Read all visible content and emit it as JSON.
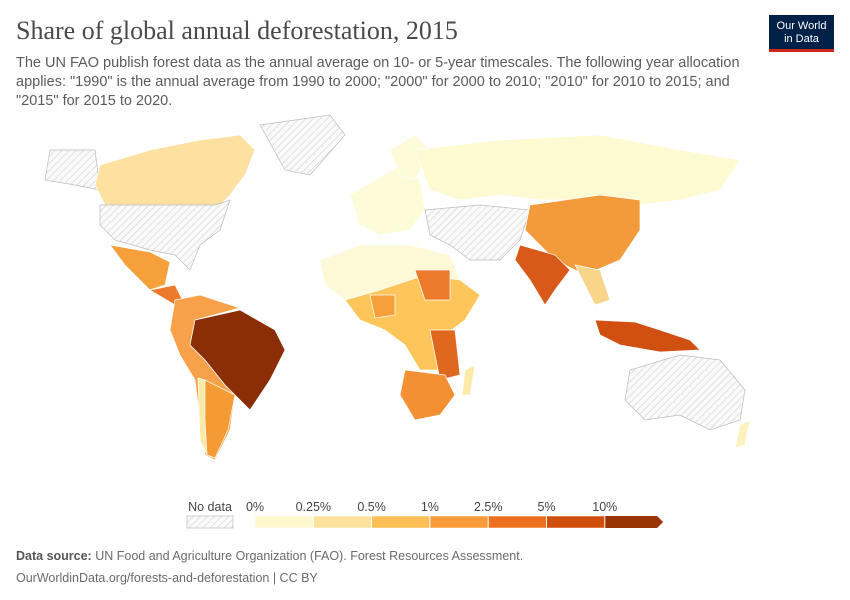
{
  "header": {
    "title": "Share of global annual deforestation, 2015",
    "subtitle": "The UN FAO publish forest data as the annual average on 10- or 5-year timescales. The following year allocation applies: \"1990\" is the annual average from 1990 to 2000; \"2000\" for 2000 to 2010; \"2010\" for 2010 to 2015; and \"2015\" for 2015 to 2020.",
    "logo": [
      "Our World",
      "in Data"
    ]
  },
  "legend": {
    "no_data": "No data",
    "ticks": [
      {
        "value": 0,
        "label": "0%"
      },
      {
        "value": 0.25,
        "label": "0.25%"
      },
      {
        "value": 0.5,
        "label": "0.5%"
      },
      {
        "value": 1,
        "label": "1%"
      },
      {
        "value": 2.5,
        "label": "2.5%"
      },
      {
        "value": 5,
        "label": "5%"
      },
      {
        "value": 10,
        "label": "10%"
      }
    ],
    "colors": [
      "#fef8cf",
      "#fde39c",
      "#fdbf55",
      "#f89a38",
      "#ec7020",
      "#cf4e0c",
      "#993404"
    ]
  },
  "footer": {
    "source_label": "Data source:",
    "source": "UN Food and Agriculture Organization (FAO). Forest Resources Assessment.",
    "url": "OurWorldinData.org/forests-and-deforestation | CC BY"
  }
}
